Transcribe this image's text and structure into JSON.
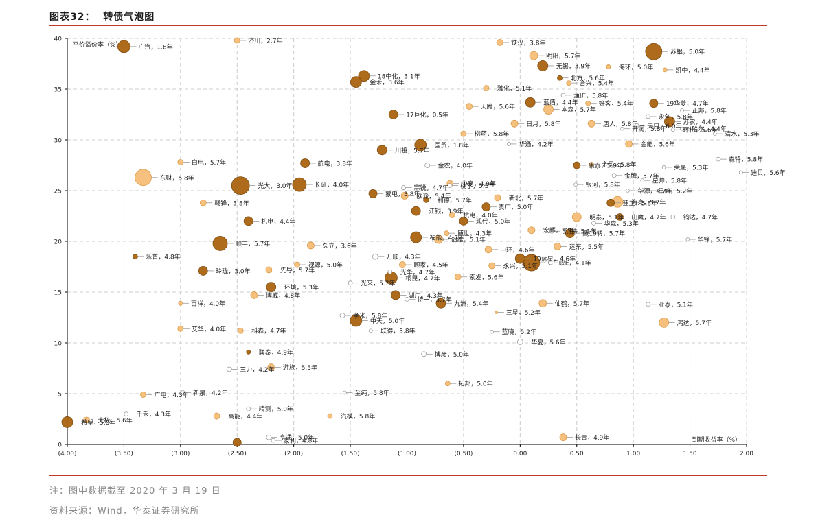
{
  "figure": {
    "title": "图表32：  转债气泡图",
    "note": "注：图中数据截至 2020 年 3 月 19 日",
    "source": "资料来源：Wind，华泰证券研究所"
  },
  "colors": {
    "dark": "#a9640f",
    "light": "#f6be78",
    "hollow_stroke": "#999999",
    "grid": "#cccccc",
    "leader": "#9a9a9a",
    "rule": "#c0392b"
  },
  "chart_data": {
    "type": "scatter",
    "xlabel": "到期收益率（%）",
    "ylabel": "平价溢价率（%）",
    "xlim": [
      -4,
      2
    ],
    "ylim": [
      0,
      40
    ],
    "x_ticks": [
      -4,
      -3.5,
      -3,
      -2.5,
      -2,
      -1.5,
      -1,
      -0.5,
      0,
      0.5,
      1,
      1.5,
      2
    ],
    "x_tick_labels": [
      "(4.00)",
      "(3.50)",
      "(3.00)",
      "(2.50)",
      "(2.00)",
      "(1.50)",
      "(1.00)",
      "(0.50)",
      "0.00",
      "0.50",
      "1.00",
      "1.50",
      "2.00"
    ],
    "y_ticks": [
      0,
      5,
      10,
      15,
      20,
      25,
      30,
      35,
      40
    ],
    "y_tick_labels": [
      "0",
      "5",
      "10",
      "15",
      "20",
      "25",
      "30",
      "35",
      "40"
    ],
    "grid": true,
    "legend": "none",
    "points": [
      {
        "x": -3.5,
        "y": 39.2,
        "size": 9,
        "style": "dark",
        "label": "广汽，1.8年"
      },
      {
        "x": -2.5,
        "y": 39.8,
        "size": 4,
        "style": "light",
        "label": "济川，2.7年"
      },
      {
        "x": -0.18,
        "y": 39.6,
        "size": 4.5,
        "style": "light",
        "label": "铁汉，3.8年"
      },
      {
        "x": 1.18,
        "y": 38.7,
        "size": 12,
        "style": "dark",
        "label": "苏银，5.0年"
      },
      {
        "x": 0.12,
        "y": 38.3,
        "size": 6,
        "style": "light",
        "label": "明阳，5.7年"
      },
      {
        "x": 0.2,
        "y": 37.3,
        "size": 7.5,
        "style": "dark",
        "label": "无锡，3.9年"
      },
      {
        "x": 0.78,
        "y": 37.2,
        "size": 3,
        "style": "light",
        "label": "海环，5.0年"
      },
      {
        "x": 1.28,
        "y": 36.9,
        "size": 3,
        "style": "light",
        "label": "凯中，4.4年"
      },
      {
        "x": -1.38,
        "y": 36.3,
        "size": 8,
        "style": "dark",
        "label": "18中化，3.1年"
      },
      {
        "x": -1.45,
        "y": 35.7,
        "size": 8,
        "style": "dark",
        "label": "金禾，3.6年"
      },
      {
        "x": 0.35,
        "y": 36.1,
        "size": 3.5,
        "style": "dark",
        "label": "北方，5.6年"
      },
      {
        "x": 0.43,
        "y": 35.6,
        "size": 3.5,
        "style": "light",
        "label": "合兴，5.4年"
      },
      {
        "x": -0.3,
        "y": 35.1,
        "size": 4,
        "style": "light",
        "label": "雅化，5.1年"
      },
      {
        "x": 0.38,
        "y": 34.4,
        "size": 3,
        "style": "hollow",
        "label": "渔矿，5.8年"
      },
      {
        "x": 0.09,
        "y": 33.7,
        "size": 7,
        "style": "dark",
        "label": "蓝盾，4.4年"
      },
      {
        "x": 0.6,
        "y": 33.6,
        "size": 3.5,
        "style": "light",
        "label": "好客，5.4年"
      },
      {
        "x": 1.18,
        "y": 33.6,
        "size": 6,
        "style": "dark",
        "label": "19华菱，4.7年"
      },
      {
        "x": -0.45,
        "y": 33.3,
        "size": 4.5,
        "style": "light",
        "label": "天路，5.6年"
      },
      {
        "x": 0.25,
        "y": 33.0,
        "size": 7,
        "style": "light",
        "label": "本森，5.7年"
      },
      {
        "x": 1.43,
        "y": 32.9,
        "size": 2.5,
        "style": "hollow",
        "label": "正邦，5.8年"
      },
      {
        "x": -1.12,
        "y": 32.5,
        "size": 6.5,
        "style": "dark",
        "label": "17巨化，0.5年"
      },
      {
        "x": 1.13,
        "y": 32.3,
        "size": 3,
        "style": "hollow",
        "label": "永创，5.8年"
      },
      {
        "x": 1.32,
        "y": 31.8,
        "size": 7.5,
        "style": "dark",
        "label": "苏农，4.4年"
      },
      {
        "x": -0.05,
        "y": 31.6,
        "size": 5,
        "style": "light",
        "label": "日月，5.8年"
      },
      {
        "x": 0.63,
        "y": 31.6,
        "size": 5,
        "style": "light",
        "label": "唐人，5.8年"
      },
      {
        "x": 1.03,
        "y": 31.4,
        "size": 3,
        "style": "hollow",
        "label": "天目，6.0年"
      },
      {
        "x": 1.43,
        "y": 31.1,
        "size": 2.5,
        "style": "hollow",
        "label": "哈尔，4.4年"
      },
      {
        "x": 0.9,
        "y": 31.1,
        "size": 2.5,
        "style": "hollow",
        "label": "开润，5.8年"
      },
      {
        "x": 1.35,
        "y": 31.0,
        "size": 2.5,
        "style": "hollow",
        "label": "环松，5.6年"
      },
      {
        "x": -0.5,
        "y": 30.6,
        "size": 4,
        "style": "light",
        "label": "柳药，5.8年"
      },
      {
        "x": 1.72,
        "y": 30.6,
        "size": 2.5,
        "style": "hollow",
        "label": "清水，5.3年"
      },
      {
        "x": -0.1,
        "y": 29.6,
        "size": 2.5,
        "style": "hollow",
        "label": "华通，4.2年"
      },
      {
        "x": 0.96,
        "y": 29.6,
        "size": 5,
        "style": "light",
        "label": "金能，5.6年"
      },
      {
        "x": -0.88,
        "y": 29.5,
        "size": 8.5,
        "style": "dark",
        "label": "国贸，1.8年"
      },
      {
        "x": -1.22,
        "y": 29.0,
        "size": 7,
        "style": "dark",
        "label": "川投，5.7年"
      },
      {
        "x": 1.75,
        "y": 28.1,
        "size": 3,
        "style": "hollow",
        "label": "森特，5.8年"
      },
      {
        "x": -3.0,
        "y": 27.8,
        "size": 4,
        "style": "light",
        "label": "白电，5.7年"
      },
      {
        "x": -1.9,
        "y": 27.7,
        "size": 6.5,
        "style": "dark",
        "label": "航电，3.8年"
      },
      {
        "x": 0.5,
        "y": 27.5,
        "size": 5,
        "style": "dark",
        "label": "康泰，5.9年"
      },
      {
        "x": 0.63,
        "y": 27.6,
        "size": 3,
        "style": "light",
        "label": "金风，5.8年"
      },
      {
        "x": -0.82,
        "y": 27.5,
        "size": 3.5,
        "style": "hollow",
        "label": "金农，4.0年"
      },
      {
        "x": 1.27,
        "y": 27.3,
        "size": 2.5,
        "style": "hollow",
        "label": "荣晟，5.3年"
      },
      {
        "x": 1.95,
        "y": 26.8,
        "size": 2.5,
        "style": "hollow",
        "label": "迪贝，5.6年"
      },
      {
        "x": 0.83,
        "y": 26.5,
        "size": 3,
        "style": "hollow",
        "label": "金牌，5.7年"
      },
      {
        "x": -3.33,
        "y": 26.3,
        "size": 12,
        "style": "light",
        "label": "东财，5.8年"
      },
      {
        "x": -0.62,
        "y": 25.7,
        "size": 4.5,
        "style": "light",
        "label": "中宠，4.9年"
      },
      {
        "x": 1.08,
        "y": 26.0,
        "size": 2.5,
        "style": "hollow",
        "label": "星帅，5.8年"
      },
      {
        "x": -2.47,
        "y": 25.5,
        "size": 13,
        "style": "dark",
        "label": "光大，3.0年"
      },
      {
        "x": -1.95,
        "y": 25.6,
        "size": 10,
        "style": "dark",
        "label": "长证，4.0年"
      },
      {
        "x": -0.62,
        "y": 25.5,
        "size": 3,
        "style": "hollow",
        "label": "桃李，5.5年"
      },
      {
        "x": 0.49,
        "y": 25.6,
        "size": 2.5,
        "style": "hollow",
        "label": "银河，5.8年"
      },
      {
        "x": -1.03,
        "y": 25.3,
        "size": 3,
        "style": "hollow",
        "label": "寒锐，4.7年"
      },
      {
        "x": 0.95,
        "y": 25.0,
        "size": 2.5,
        "style": "hollow",
        "label": "华源，4.7年"
      },
      {
        "x": 1.13,
        "y": 25.0,
        "size": 2.5,
        "style": "hollow",
        "label": "星仙，5.2年"
      },
      {
        "x": -1.3,
        "y": 24.7,
        "size": 6,
        "style": "dark",
        "label": "蒙电，3.8年"
      },
      {
        "x": -1.02,
        "y": 24.5,
        "size": 5,
        "style": "light",
        "label": "欧派，5.4年"
      },
      {
        "x": -0.83,
        "y": 24.1,
        "size": 4,
        "style": "dark",
        "label": "利德，5.7年"
      },
      {
        "x": -0.2,
        "y": 24.3,
        "size": 4.5,
        "style": "light",
        "label": "新北，5.7年"
      },
      {
        "x": -2.8,
        "y": 23.8,
        "size": 4.5,
        "style": "light",
        "label": "赣锋，3.8年"
      },
      {
        "x": 0.8,
        "y": 23.8,
        "size": 5.5,
        "style": "dark",
        "label": "建工，5.8年"
      },
      {
        "x": 0.86,
        "y": 23.9,
        "size": 8,
        "style": "light",
        "label": "海亮，5.7年"
      },
      {
        "x": -0.3,
        "y": 23.4,
        "size": 6,
        "style": "dark",
        "label": "贵广，5.0年"
      },
      {
        "x": -0.92,
        "y": 23.0,
        "size": 6.5,
        "style": "dark",
        "label": "江银，3.9年"
      },
      {
        "x": -0.6,
        "y": 22.6,
        "size": 4,
        "style": "light",
        "label": "杭电，4.0年"
      },
      {
        "x": 0.5,
        "y": 22.4,
        "size": 6.5,
        "style": "light",
        "label": "明泰，5.1年"
      },
      {
        "x": 0.88,
        "y": 22.4,
        "size": 5,
        "style": "dark",
        "label": "山鹰，4.7年"
      },
      {
        "x": 1.35,
        "y": 22.4,
        "size": 3,
        "style": "hollow",
        "label": "钧达，4.7年"
      },
      {
        "x": -2.4,
        "y": 22.0,
        "size": 6.5,
        "style": "dark",
        "label": "机电，4.4年"
      },
      {
        "x": -0.5,
        "y": 22.0,
        "size": 6,
        "style": "dark",
        "label": "现代，5.0年"
      },
      {
        "x": 0.65,
        "y": 21.8,
        "size": 3,
        "style": "hollow",
        "label": "华森，5.3年"
      },
      {
        "x": 0.1,
        "y": 21.1,
        "size": 5,
        "style": "light",
        "label": "宏辉，5.9年"
      },
      {
        "x": 0.44,
        "y": 20.8,
        "size": 6.5,
        "style": "dark",
        "label": "鹰19转，5.7年"
      },
      {
        "x": 0.28,
        "y": 21.0,
        "size": 3,
        "style": "hollow",
        "label": "凯胜，5.1年"
      },
      {
        "x": -0.65,
        "y": 20.8,
        "size": 3.5,
        "style": "light",
        "label": "博世，4.3年"
      },
      {
        "x": 1.48,
        "y": 20.2,
        "size": 2.5,
        "style": "hollow",
        "label": "华锋，5.7年"
      },
      {
        "x": -0.92,
        "y": 20.4,
        "size": 8,
        "style": "dark",
        "label": "福能，4.7年"
      },
      {
        "x": -0.72,
        "y": 20.2,
        "size": 6,
        "style": "light",
        "label": "创维，5.1年"
      },
      {
        "x": -2.65,
        "y": 19.8,
        "size": 10.5,
        "style": "dark",
        "label": "顺丰，5.7年"
      },
      {
        "x": -1.85,
        "y": 19.6,
        "size": 5,
        "style": "light",
        "label": "久立，3.6年"
      },
      {
        "x": 0.33,
        "y": 19.5,
        "size": 5,
        "style": "light",
        "label": "运东，5.5年"
      },
      {
        "x": -0.28,
        "y": 19.2,
        "size": 5,
        "style": "light",
        "label": "中环，4.6年"
      },
      {
        "x": -3.4,
        "y": 18.5,
        "size": 3.5,
        "style": "dark",
        "label": "乐普，4.8年"
      },
      {
        "x": -1.28,
        "y": 18.5,
        "size": 4,
        "style": "hollow",
        "label": "万顺，4.3年"
      },
      {
        "x": 0.0,
        "y": 18.3,
        "size": 7,
        "style": "dark",
        "label": "19蓝星，4.6年"
      },
      {
        "x": 0.1,
        "y": 17.9,
        "size": 12,
        "style": "dark",
        "label": "G三峡E，4.1年"
      },
      {
        "x": -1.04,
        "y": 17.7,
        "size": 4.5,
        "style": "light",
        "label": "顾家，4.5年"
      },
      {
        "x": -1.97,
        "y": 17.7,
        "size": 4,
        "style": "light",
        "label": "视源，5.0年"
      },
      {
        "x": -0.25,
        "y": 17.6,
        "size": 4.5,
        "style": "light",
        "label": "永兴，5.1年"
      },
      {
        "x": -2.22,
        "y": 17.2,
        "size": 4.5,
        "style": "light",
        "label": "先导，5.7年"
      },
      {
        "x": -2.8,
        "y": 17.1,
        "size": 6.5,
        "style": "dark",
        "label": "玲珑，3.0年"
      },
      {
        "x": -1.15,
        "y": 17.0,
        "size": 3,
        "style": "hollow",
        "label": "光华，4.7年"
      },
      {
        "x": -1.14,
        "y": 16.4,
        "size": 9,
        "style": "dark",
        "label": "桐昆，4.7年"
      },
      {
        "x": -0.55,
        "y": 16.5,
        "size": 4.5,
        "style": "light",
        "label": "索发，5.6年"
      },
      {
        "x": -1.5,
        "y": 15.9,
        "size": 3,
        "style": "hollow",
        "label": "光来，5.7年"
      },
      {
        "x": -2.2,
        "y": 15.5,
        "size": 7,
        "style": "dark",
        "label": "环境，5.3年"
      },
      {
        "x": -2.35,
        "y": 14.7,
        "size": 5,
        "style": "light",
        "label": "博威，4.8年"
      },
      {
        "x": -1.1,
        "y": 14.7,
        "size": 6.5,
        "style": "dark",
        "label": "湖广，4.3年"
      },
      {
        "x": -1.0,
        "y": 14.3,
        "size": 3,
        "style": "hollow",
        "label": "特一，3.7年"
      },
      {
        "x": -0.7,
        "y": 13.9,
        "size": 7,
        "style": "dark",
        "label": "九洲，5.4年"
      },
      {
        "x": -3.0,
        "y": 13.9,
        "size": 3,
        "style": "light",
        "label": "百祥，4.0年"
      },
      {
        "x": 0.2,
        "y": 13.9,
        "size": 5.5,
        "style": "light",
        "label": "仙鹤，5.7年"
      },
      {
        "x": 1.13,
        "y": 13.8,
        "size": 3,
        "style": "hollow",
        "label": "亚泰，5.1年"
      },
      {
        "x": -0.21,
        "y": 13.0,
        "size": 2,
        "style": "light",
        "label": "三星，5.2年"
      },
      {
        "x": -1.57,
        "y": 12.7,
        "size": 3.5,
        "style": "hollow",
        "label": "孝米，5.8年"
      },
      {
        "x": -1.45,
        "y": 12.2,
        "size": 8.5,
        "style": "dark",
        "label": "中天，5.0年"
      },
      {
        "x": 1.27,
        "y": 12.0,
        "size": 7,
        "style": "light",
        "label": "鸿达，5.7年"
      },
      {
        "x": -3.0,
        "y": 11.4,
        "size": 4,
        "style": "light",
        "label": "艾华，4.0年"
      },
      {
        "x": -2.47,
        "y": 11.2,
        "size": 4,
        "style": "light",
        "label": "科森，4.7年"
      },
      {
        "x": -1.32,
        "y": 11.2,
        "size": 2.5,
        "style": "hollow",
        "label": "联得，5.8年"
      },
      {
        "x": -0.25,
        "y": 11.1,
        "size": 2.5,
        "style": "hollow",
        "label": "蓝晓，5.2年"
      },
      {
        "x": 0.0,
        "y": 10.1,
        "size": 4,
        "style": "hollow",
        "label": "华夏，5.6年"
      },
      {
        "x": -2.4,
        "y": 9.1,
        "size": 3,
        "style": "dark",
        "label": "联泰，4.9年"
      },
      {
        "x": -0.85,
        "y": 8.9,
        "size": 3.5,
        "style": "hollow",
        "label": "博彦，5.0年"
      },
      {
        "x": -2.57,
        "y": 7.4,
        "size": 3.5,
        "style": "hollow",
        "label": "三力，4.2年"
      },
      {
        "x": -2.2,
        "y": 7.6,
        "size": 5,
        "style": "light",
        "label": "游族，5.5年"
      },
      {
        "x": -0.64,
        "y": 6.0,
        "size": 3.5,
        "style": "light",
        "label": "拓邦，5.0年"
      },
      {
        "x": -1.55,
        "y": 5.1,
        "size": 2.5,
        "style": "hollow",
        "label": "至纯，5.8年"
      },
      {
        "x": -3.33,
        "y": 4.9,
        "size": 4,
        "style": "light",
        "label": "广电，4.3年"
      },
      {
        "x": -2.98,
        "y": 5.1,
        "size": 3,
        "style": "hollow",
        "label": "新泉，4.2年"
      },
      {
        "x": -2.4,
        "y": 3.5,
        "size": 3,
        "style": "hollow",
        "label": "精测，5.0年"
      },
      {
        "x": -3.48,
        "y": 3.0,
        "size": 3,
        "style": "hollow",
        "label": "千禾，4.3年"
      },
      {
        "x": -2.68,
        "y": 2.8,
        "size": 4.5,
        "style": "light",
        "label": "高能，4.4年"
      },
      {
        "x": -1.68,
        "y": 2.8,
        "size": 3.5,
        "style": "light",
        "label": "汽模，5.8年"
      },
      {
        "x": -3.83,
        "y": 2.4,
        "size": 4.5,
        "style": "light",
        "label": "太极，5.6年"
      },
      {
        "x": -4.0,
        "y": 2.2,
        "size": 8,
        "style": "dark",
        "label": "希望，5.8年"
      },
      {
        "x": 0.38,
        "y": 0.7,
        "size": 5,
        "style": "light",
        "label": "长青，4.9年"
      },
      {
        "x": -2.22,
        "y": 0.7,
        "size": 3.5,
        "style": "hollow",
        "label": "亨通，5.0年"
      },
      {
        "x": -2.18,
        "y": 0.4,
        "size": 3,
        "style": "hollow",
        "label": "蒙利，4.8年"
      },
      {
        "x": -2.5,
        "y": 0.2,
        "size": 6,
        "style": "dark",
        "label": ""
      }
    ]
  }
}
